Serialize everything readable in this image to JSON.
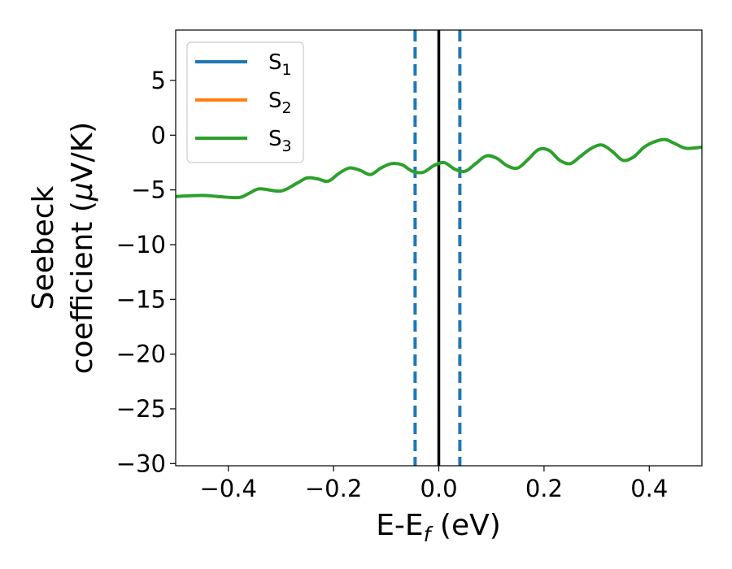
{
  "chart_data": {
    "type": "line",
    "xlabel": {
      "main": "E-E",
      "sub": "f",
      "rest": " (eV)"
    },
    "ylabel": {
      "line1": "Seebeck",
      "line2_a": "coefficient  (",
      "mu": "μ",
      "line2_b": "V/K)"
    },
    "xlim": [
      -0.5,
      0.5
    ],
    "ylim": [
      -30.2,
      9.6
    ],
    "xticks": [
      -0.4,
      -0.2,
      0.0,
      0.2,
      0.4
    ],
    "xtick_labels": [
      "−0.4",
      "−0.2",
      "0.0",
      "0.2",
      "0.4"
    ],
    "yticks": [
      -30,
      -25,
      -20,
      -15,
      -10,
      -5,
      0,
      5
    ],
    "ytick_labels": [
      "−30",
      "−25",
      "−20",
      "−15",
      "−10",
      "−5",
      "0",
      "5"
    ],
    "grid": false,
    "legend_position": "top-left",
    "series": [
      {
        "name": "S",
        "sub": "1",
        "color": "#1f77b4",
        "x": [],
        "y": []
      },
      {
        "name": "S",
        "sub": "2",
        "color": "#ff7f0e",
        "x": [],
        "y": []
      },
      {
        "name": "S",
        "sub": "3",
        "color": "#2ca02c",
        "x": [
          -0.5,
          -0.45,
          -0.42,
          -0.38,
          -0.36,
          -0.34,
          -0.3,
          -0.27,
          -0.25,
          -0.23,
          -0.21,
          -0.19,
          -0.17,
          -0.15,
          -0.13,
          -0.11,
          -0.09,
          -0.07,
          -0.05,
          -0.03,
          -0.01,
          0.01,
          0.03,
          0.05,
          0.07,
          0.09,
          0.11,
          0.13,
          0.15,
          0.17,
          0.19,
          0.21,
          0.23,
          0.25,
          0.27,
          0.29,
          0.31,
          0.33,
          0.35,
          0.37,
          0.39,
          0.41,
          0.43,
          0.45,
          0.47,
          0.5
        ],
        "y": [
          -5.6,
          -5.5,
          -5.6,
          -5.7,
          -5.3,
          -4.9,
          -5.1,
          -4.4,
          -3.9,
          -4.0,
          -4.2,
          -3.5,
          -3.0,
          -3.2,
          -3.6,
          -3.0,
          -2.6,
          -2.7,
          -3.3,
          -3.4,
          -2.8,
          -2.5,
          -3.1,
          -3.3,
          -2.6,
          -1.9,
          -2.1,
          -2.8,
          -3.0,
          -2.2,
          -1.3,
          -1.4,
          -2.3,
          -2.6,
          -1.9,
          -1.2,
          -0.9,
          -1.5,
          -2.3,
          -2.0,
          -1.1,
          -0.6,
          -0.4,
          -0.8,
          -1.2,
          -1.1
        ]
      }
    ],
    "vlines": [
      {
        "x": -0.045,
        "style": "dashed",
        "color": "#1f77b4"
      },
      {
        "x": 0.0,
        "style": "solid",
        "color": "#000000"
      },
      {
        "x": 0.04,
        "style": "dashed",
        "color": "#1f77b4"
      }
    ]
  }
}
